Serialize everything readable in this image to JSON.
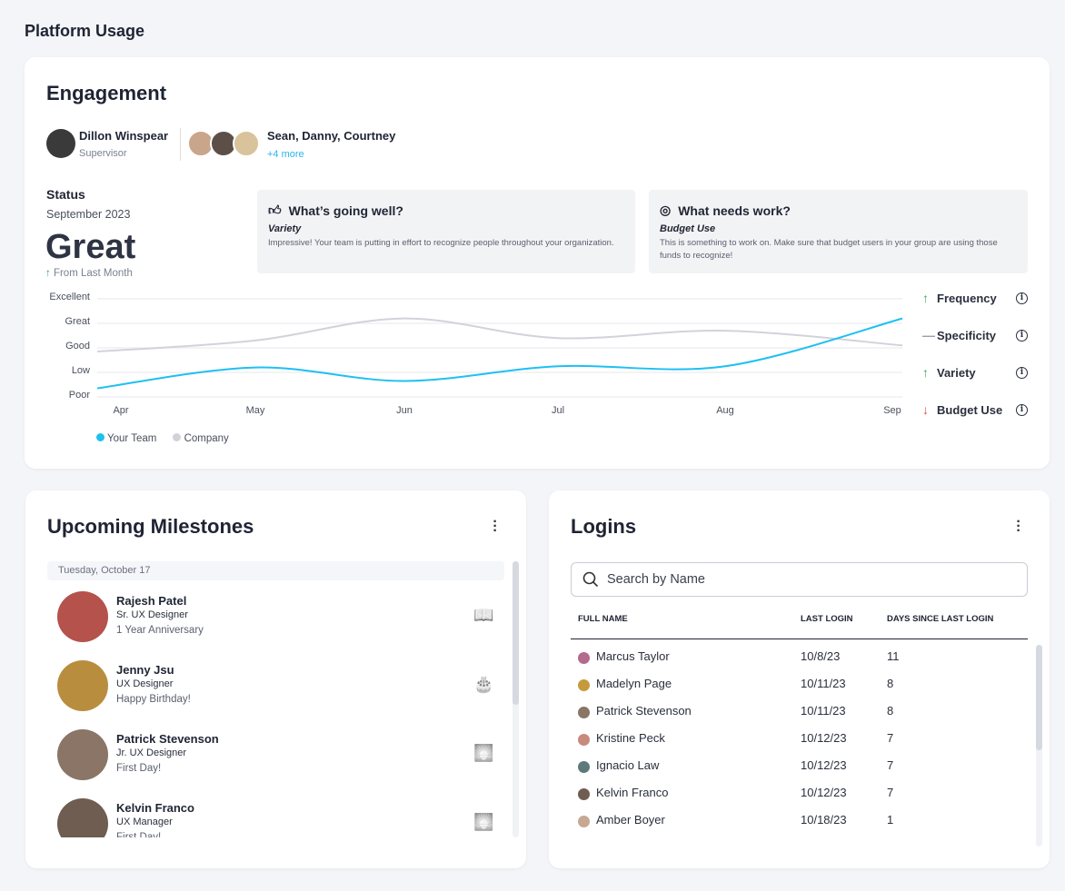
{
  "page_title": "Platform Usage",
  "engagement": {
    "title": "Engagement",
    "supervisor": {
      "name": "Dillon Winspear",
      "role": "Supervisor"
    },
    "team": {
      "names": "Sean, Danny, Courtney",
      "more": "+4 more"
    },
    "status": {
      "label": "Status",
      "period": "September 2023",
      "value": "Great",
      "trend": "From Last Month",
      "trend_color": "#3aa564"
    },
    "going_well": {
      "title": "What’s going well?",
      "subject": "Variety",
      "text": "Impressive! Your team is putting in effort to recognize people throughout your organization.",
      "icon": "thumbs-up-icon"
    },
    "needs_work": {
      "title": "What needs work?",
      "subject": "Budget Use",
      "text": "This is something to work on. Make sure that budget users in your group are using those funds to recognize!",
      "icon": "target-icon"
    },
    "metrics": [
      {
        "label": "Frequency",
        "trend": "up",
        "arrow": "↑",
        "color": "#3aa564"
      },
      {
        "label": "Specificity",
        "trend": "flat",
        "arrow": "—",
        "color": "#9aa0ab"
      },
      {
        "label": "Variety",
        "trend": "up",
        "arrow": "↑",
        "color": "#3aa564"
      },
      {
        "label": "Budget Use",
        "trend": "down",
        "arrow": "↓",
        "color": "#e0474c"
      }
    ],
    "info_glyph": "i"
  },
  "chart_data": {
    "type": "line",
    "categories": [
      "Apr",
      "May",
      "Jun",
      "Jul",
      "Aug",
      "Sep"
    ],
    "y_levels": [
      "Poor",
      "Low",
      "Good",
      "Great",
      "Excellent"
    ],
    "ylim": [
      0,
      4
    ],
    "grid": true,
    "legend_position": "bottom-left",
    "series": [
      {
        "name": "Your Team",
        "color": "#1ec0f2",
        "values": [
          0.35,
          1.2,
          0.65,
          1.25,
          1.25,
          3.2
        ]
      },
      {
        "name": "Company",
        "color": "#d3d2da",
        "values": [
          1.85,
          2.3,
          3.2,
          2.4,
          2.7,
          2.1
        ]
      }
    ]
  },
  "milestones": {
    "title": "Upcoming Milestones",
    "date": "Tuesday, October 17",
    "items": [
      {
        "name": "Rajesh Patel",
        "role": "Sr. UX Designer",
        "event": "1 Year Anniversary",
        "icon": "book-icon",
        "glyph": "📖",
        "color": "#b5524c"
      },
      {
        "name": "Jenny Jsu",
        "role": "UX Designer",
        "event": "Happy Birthday!",
        "icon": "cake-icon",
        "glyph": "🎂",
        "color": "#b98d3e"
      },
      {
        "name": "Patrick Stevenson",
        "role": "Jr. UX Designer",
        "event": "First Day!",
        "icon": "sunrise-icon",
        "glyph": "🌅",
        "color": "#8a7566"
      },
      {
        "name": "Kelvin Franco",
        "role": "UX Manager",
        "event": "First Day!",
        "icon": "sunrise-icon",
        "glyph": "🌅",
        "color": "#6e5d50"
      }
    ]
  },
  "logins": {
    "title": "Logins",
    "search_placeholder": "Search by Name",
    "columns": [
      "FULL NAME",
      "LAST LOGIN",
      "DAYS SINCE LAST LOGIN"
    ],
    "rows": [
      {
        "name": "Marcus Taylor",
        "last": "10/8/23",
        "days": "11",
        "color": "#b36a8c"
      },
      {
        "name": "Madelyn Page",
        "last": "10/11/23",
        "days": "8",
        "color": "#c69a3c"
      },
      {
        "name": "Patrick Stevenson",
        "last": "10/11/23",
        "days": "8",
        "color": "#8a7566"
      },
      {
        "name": "Kristine Peck",
        "last": "10/12/23",
        "days": "7",
        "color": "#c98a7e"
      },
      {
        "name": "Ignacio Law",
        "last": "10/12/23",
        "days": "7",
        "color": "#5e7a78"
      },
      {
        "name": "Kelvin Franco",
        "last": "10/12/23",
        "days": "7",
        "color": "#6e5d50"
      },
      {
        "name": "Amber Boyer",
        "last": "10/18/23",
        "days": "1",
        "color": "#c7a892"
      }
    ]
  }
}
